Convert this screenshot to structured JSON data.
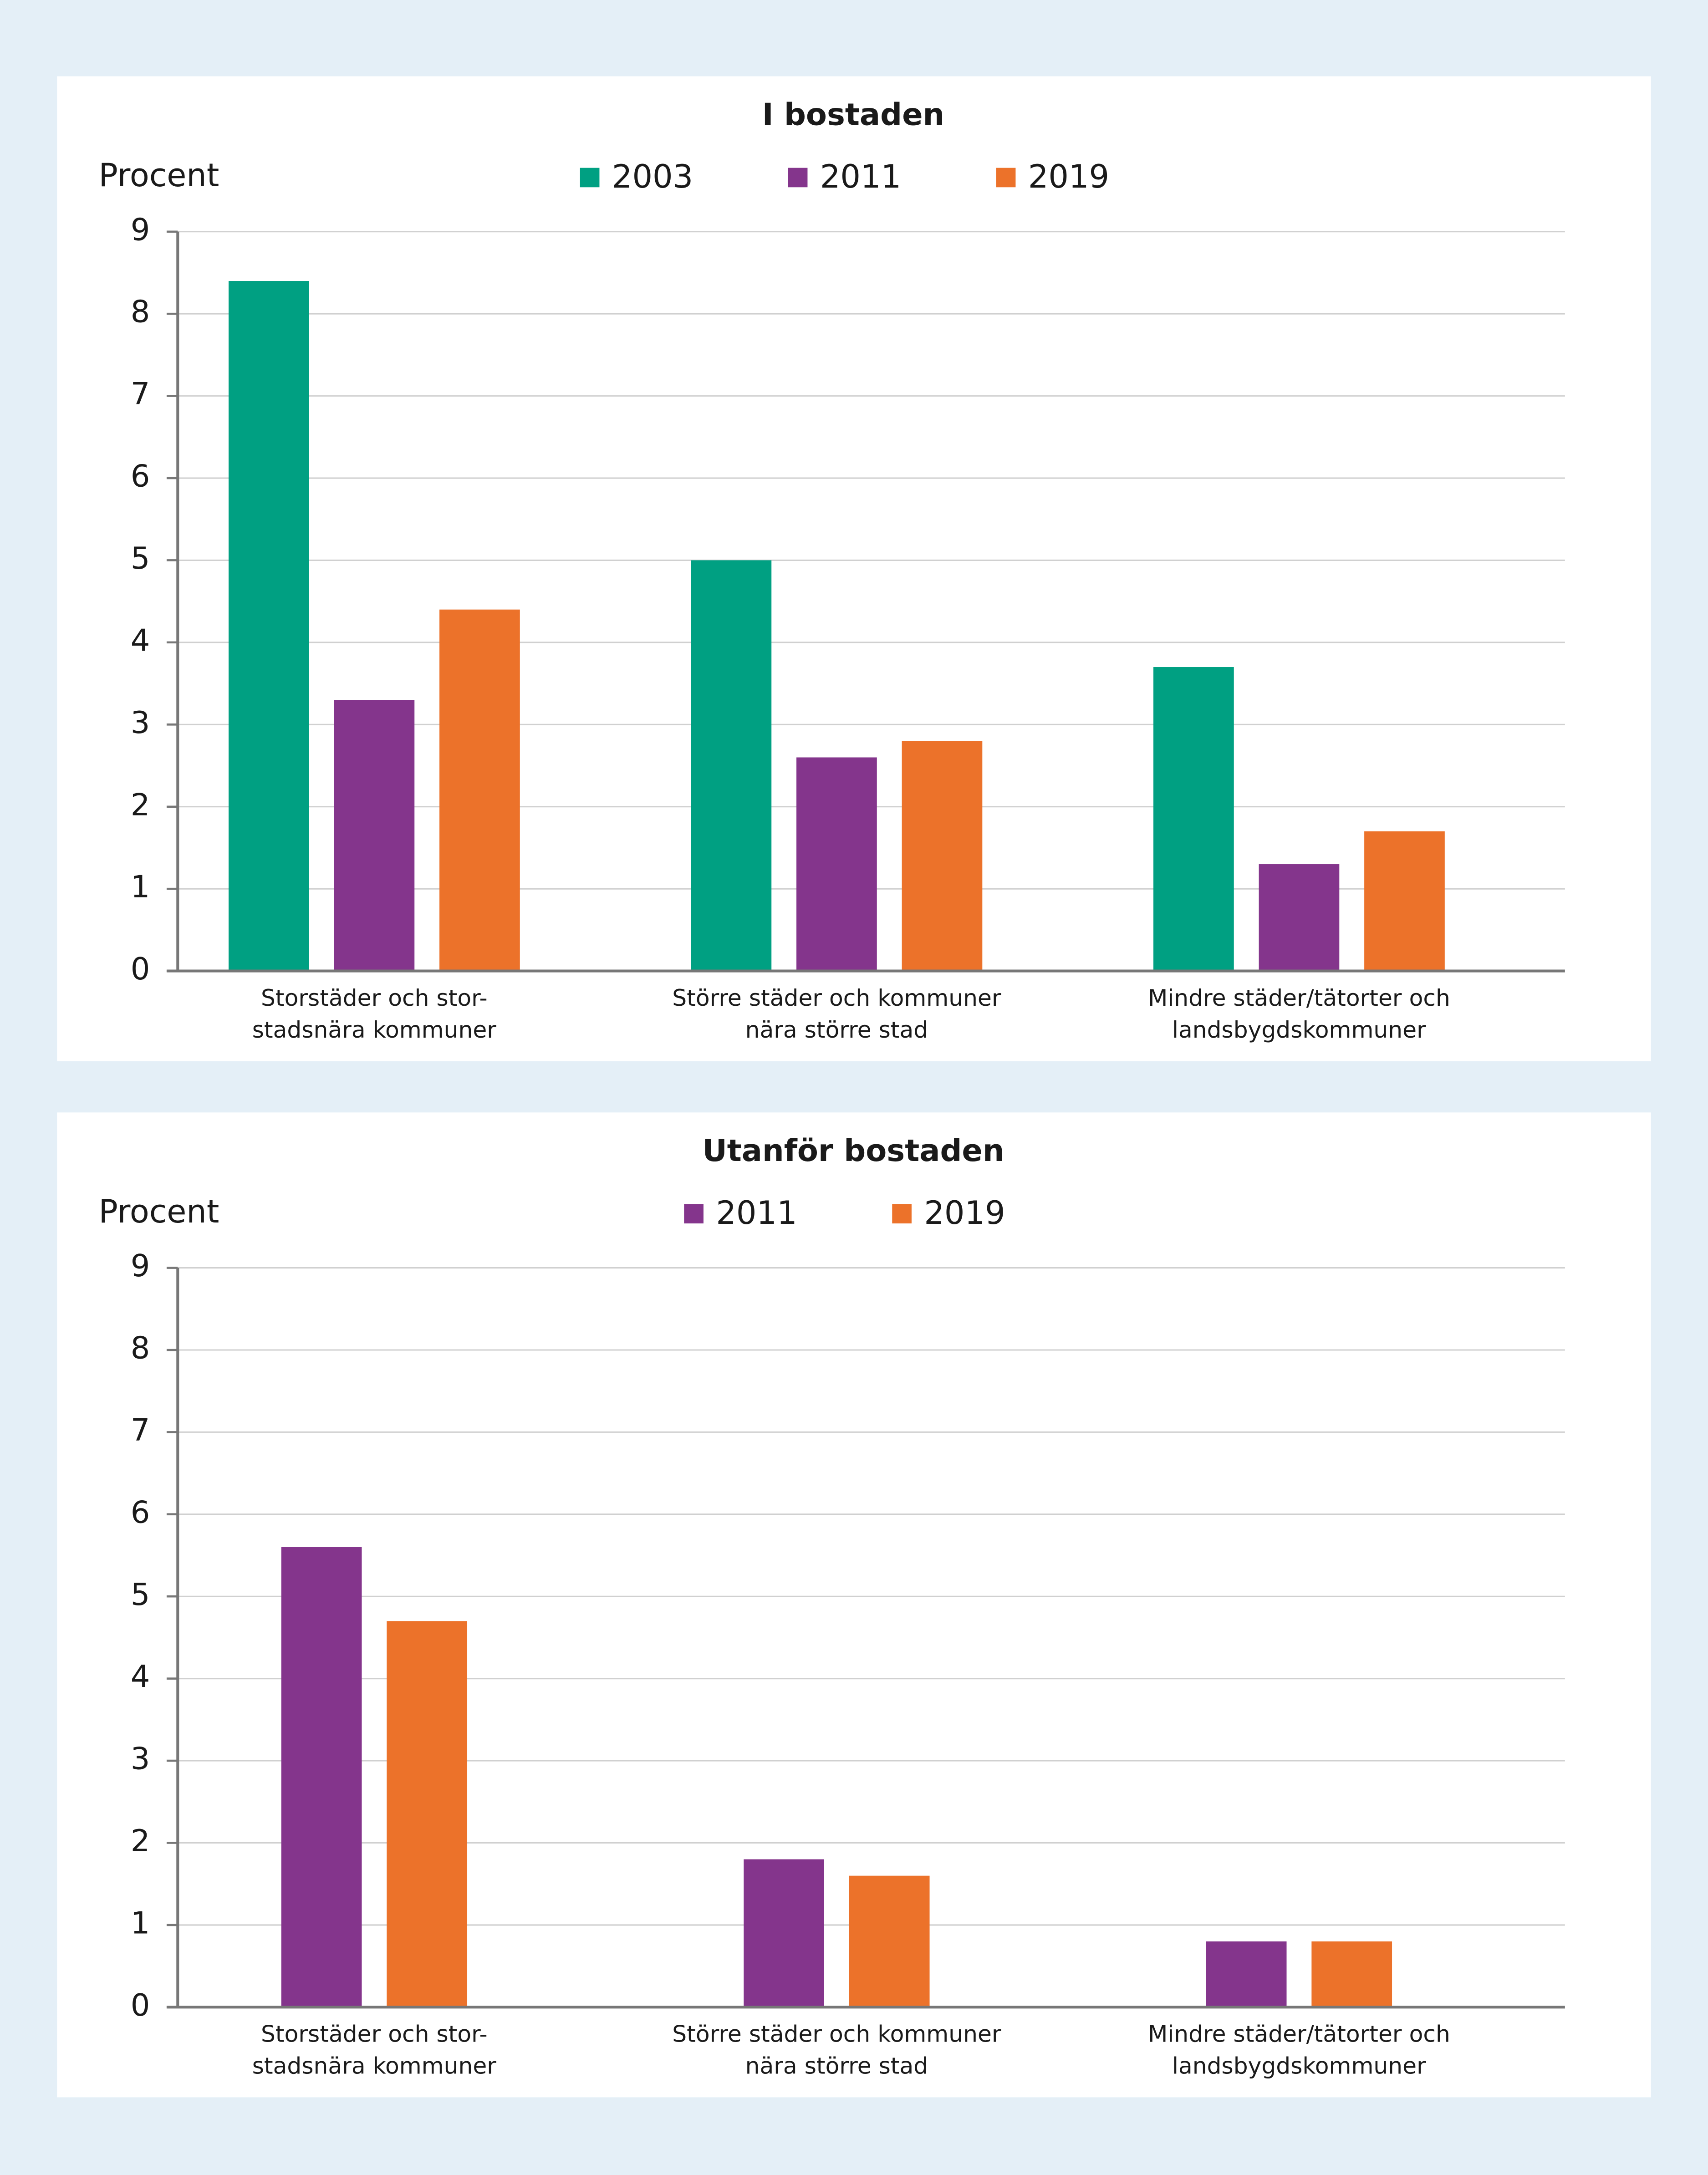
{
  "chart_data": [
    {
      "type": "bar",
      "title": "I bostaden",
      "y_label": "Procent",
      "categories": [
        "Storstäder och stor-\nstadsnära kommuner",
        "Större städer och kommuner\nnära större stad",
        "Mindre städer/tätorter och\nlandsbygdskommuner"
      ],
      "series": [
        {
          "name": "2003",
          "color": "#00a082",
          "values": [
            8.4,
            5.0,
            3.7
          ]
        },
        {
          "name": "2011",
          "color": "#84358c",
          "values": [
            3.3,
            2.6,
            1.3
          ]
        },
        {
          "name": "2019",
          "color": "#ec722a",
          "values": [
            4.4,
            2.8,
            1.7
          ]
        }
      ],
      "ylim": [
        0,
        9
      ],
      "yticks": [
        0,
        1,
        2,
        3,
        4,
        5,
        6,
        7,
        8,
        9
      ],
      "grid": true
    },
    {
      "type": "bar",
      "title": "Utanför bostaden",
      "y_label": "Procent",
      "categories": [
        "Storstäder och stor-\nstadsnära kommuner",
        "Större städer och kommuner\nnära större stad",
        "Mindre städer/tätorter och\nlandsbygdskommuner"
      ],
      "series": [
        {
          "name": "2011",
          "color": "#84358c",
          "values": [
            5.6,
            1.8,
            0.8
          ]
        },
        {
          "name": "2019",
          "color": "#ec722a",
          "values": [
            4.7,
            1.6,
            0.8
          ]
        }
      ],
      "ylim": [
        0,
        9
      ],
      "yticks": [
        0,
        1,
        2,
        3,
        4,
        5,
        6,
        7,
        8,
        9
      ],
      "grid": true
    }
  ]
}
